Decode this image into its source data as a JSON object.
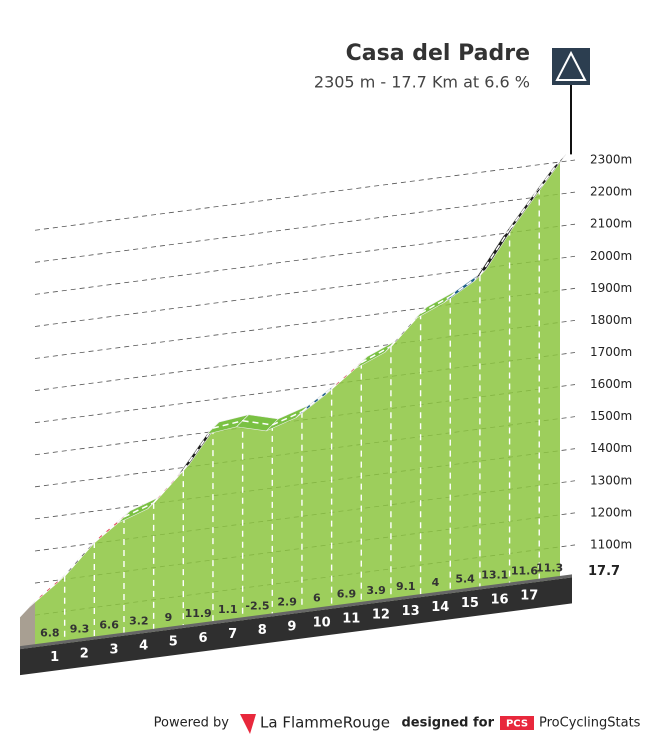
{
  "chart_data": {
    "type": "profile",
    "title": "Casa del Padre",
    "subtitle": "2305 m - 17.7 Km at 6.6 %",
    "badge": "1",
    "summit_elevation": 2305,
    "distance": 17.7,
    "km_labels": [
      1,
      2,
      3,
      4,
      5,
      6,
      7,
      8,
      9,
      10,
      11,
      12,
      13,
      14,
      15,
      16,
      17
    ],
    "gradients": [
      6.8,
      9.3,
      6.6,
      3.2,
      9.0,
      11.9,
      1.1,
      -2.5,
      2.9,
      6.0,
      6.9,
      3.9,
      9.1,
      4.0,
      5.4,
      13.1,
      11.6,
      11.3
    ],
    "colors": [
      "#e8283c",
      "#1a1a1a",
      "#e8283c",
      "#7ac143",
      "#e8283c",
      "#1a1a1a",
      "#7ac143",
      "#7ac143",
      "#7ac143",
      "#1d5f8a",
      "#e8283c",
      "#7ac143",
      "#1a1a1a",
      "#7ac143",
      "#1d5f8a",
      "#1a1a1a",
      "#1a1a1a",
      "#1a1a1a"
    ],
    "ylim": [
      1000,
      2350
    ],
    "yticks": [
      {
        "value": 1100,
        "label": "1100m"
      },
      {
        "value": 1200,
        "label": "1200m"
      },
      {
        "value": 1300,
        "label": "1300m"
      },
      {
        "value": 1400,
        "label": "1400m"
      },
      {
        "value": 1500,
        "label": "1500m"
      },
      {
        "value": 1600,
        "label": "1600m"
      },
      {
        "value": 1700,
        "label": "1700m"
      },
      {
        "value": 1800,
        "label": "1800m"
      },
      {
        "value": 1900,
        "label": "1900m"
      },
      {
        "value": 2000,
        "label": "2000m"
      },
      {
        "value": 2100,
        "label": "2100m"
      },
      {
        "value": 2200,
        "label": "2200m"
      },
      {
        "value": 2300,
        "label": "2300m"
      }
    ],
    "fill_color": "#8cc63f",
    "grid": true
  },
  "footer": {
    "powered": "Powered by",
    "brand": "La FlammeRouge",
    "designed": "designed for",
    "pcs": "PCS",
    "site": "ProCyclingStats"
  }
}
